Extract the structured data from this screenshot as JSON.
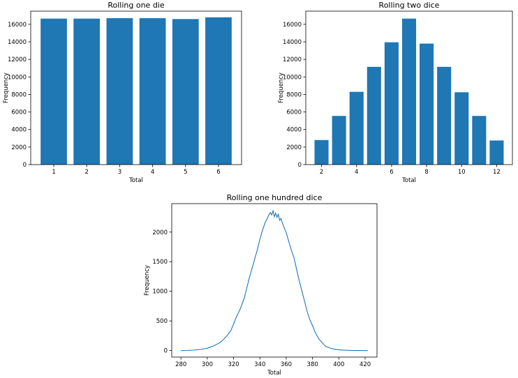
{
  "colors": {
    "bar": "#1f77b4",
    "line": "#1f77b4"
  },
  "chart_data": [
    {
      "type": "bar",
      "title": "Rolling one die",
      "xlabel": "Total",
      "ylabel": "Frequency",
      "categories": [
        1,
        2,
        3,
        4,
        5,
        6
      ],
      "values": [
        16650,
        16650,
        16700,
        16700,
        16600,
        16800
      ],
      "xticks": [
        "1",
        "2",
        "3",
        "4",
        "5",
        "6"
      ],
      "yticks": [
        "0",
        "2000",
        "4000",
        "6000",
        "8000",
        "10000",
        "12000",
        "14000",
        "16000"
      ],
      "ylim": [
        0,
        17500
      ],
      "xlim": [
        0.3,
        6.7
      ]
    },
    {
      "type": "bar",
      "title": "Rolling two dice",
      "xlabel": "Total",
      "ylabel": "Frequency",
      "categories": [
        2,
        3,
        4,
        5,
        6,
        7,
        8,
        9,
        10,
        11,
        12
      ],
      "values": [
        2800,
        5550,
        8300,
        11150,
        13950,
        16650,
        13800,
        11150,
        8250,
        5550,
        2750
      ],
      "xticks": [
        "2",
        "4",
        "6",
        "8",
        "10",
        "12"
      ],
      "yticks": [
        "0",
        "2000",
        "4000",
        "6000",
        "8000",
        "10000",
        "12000",
        "14000",
        "16000"
      ],
      "ylim": [
        0,
        17500
      ],
      "xlim": [
        1.1,
        12.9
      ]
    },
    {
      "type": "line",
      "title": "Rolling one hundred dice",
      "xlabel": "Total",
      "ylabel": "Frequency",
      "x": [
        280,
        285,
        290,
        295,
        300,
        305,
        310,
        312,
        315,
        318,
        320,
        322,
        325,
        328,
        330,
        332,
        335,
        338,
        340,
        342,
        344,
        346,
        347,
        348,
        349,
        350,
        351,
        352,
        353,
        354,
        355,
        356,
        358,
        360,
        362,
        364,
        366,
        368,
        370,
        372,
        374,
        376,
        378,
        380,
        382,
        385,
        388,
        390,
        395,
        400,
        405,
        410,
        415,
        422
      ],
      "y": [
        0,
        2,
        8,
        20,
        40,
        80,
        140,
        180,
        250,
        340,
        450,
        560,
        700,
        880,
        1050,
        1230,
        1460,
        1700,
        1880,
        2030,
        2160,
        2250,
        2300,
        2330,
        2290,
        2360,
        2260,
        2320,
        2250,
        2300,
        2200,
        2230,
        2100,
        1990,
        1840,
        1690,
        1560,
        1360,
        1170,
        1000,
        830,
        650,
        520,
        420,
        310,
        190,
        120,
        70,
        30,
        12,
        5,
        2,
        1,
        0
      ],
      "xticks": [
        "280",
        "300",
        "320",
        "340",
        "360",
        "380",
        "400",
        "420"
      ],
      "yticks": [
        "0",
        "500",
        "1000",
        "1500",
        "2000"
      ],
      "xlim": [
        273,
        429
      ],
      "ylim": [
        -110,
        2480
      ]
    }
  ]
}
